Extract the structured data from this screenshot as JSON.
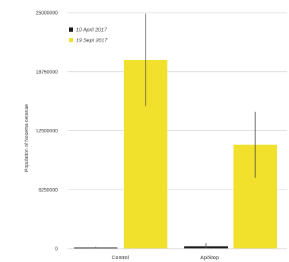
{
  "chart_data": {
    "type": "bar",
    "ylabel": "Population of Nosema ceranae",
    "categories": [
      "Control",
      "ApiStop"
    ],
    "series": [
      {
        "name": "10 April 2017",
        "color": "#1a1a1a",
        "values": [
          100000,
          250000
        ],
        "errors": [
          100000,
          350000
        ]
      },
      {
        "name": "19 Sept 2017",
        "color": "#f2e12c",
        "values": [
          20000000,
          11000000
        ],
        "errors": [
          4900000,
          3500000
        ]
      }
    ],
    "ylim": [
      0,
      25000000
    ],
    "yticks": [
      0,
      6250000,
      12500000,
      18750000,
      25000000
    ],
    "ytick_labels": [
      "0",
      "6250000",
      "12500000",
      "18750000",
      "25000000"
    ],
    "grid": true,
    "legend_position": "top-left"
  }
}
